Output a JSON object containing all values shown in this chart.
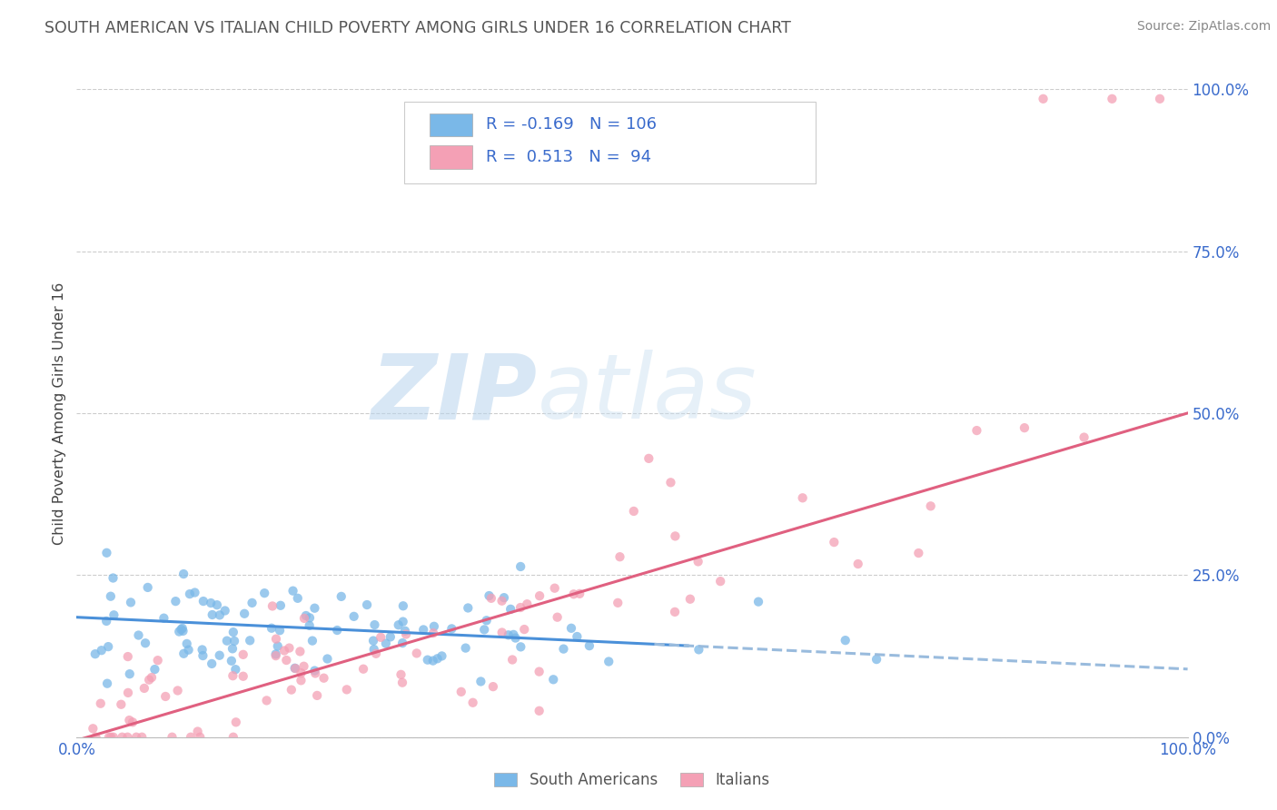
{
  "title": "SOUTH AMERICAN VS ITALIAN CHILD POVERTY AMONG GIRLS UNDER 16 CORRELATION CHART",
  "source": "Source: ZipAtlas.com",
  "watermark_zip": "ZIP",
  "watermark_atlas": "atlas",
  "ylabel": "Child Poverty Among Girls Under 16",
  "legend_label1": "South Americans",
  "legend_label2": "Italians",
  "R1": -0.169,
  "N1": 106,
  "R2": 0.513,
  "N2": 94,
  "blue_color": "#7ab8e8",
  "pink_color": "#f4a0b5",
  "blue_line_solid_color": "#4a90d9",
  "blue_line_dash_color": "#99bbdd",
  "pink_line_color": "#e06080",
  "text_color": "#3a6bcc",
  "title_color": "#555555",
  "source_color": "#888888",
  "background_color": "#ffffff",
  "grid_color": "#cccccc",
  "xlim": [
    0.0,
    1.0
  ],
  "ylim": [
    0.0,
    1.0
  ],
  "ytick_positions": [
    0.0,
    0.25,
    0.5,
    0.75,
    1.0
  ],
  "ytick_labels": [
    "0.0%",
    "25.0%",
    "50.0%",
    "75.0%",
    "100.0%"
  ],
  "xtick_positions": [
    0.0,
    1.0
  ],
  "xtick_labels": [
    "0.0%",
    "100.0%"
  ],
  "blue_line_y0": 0.185,
  "blue_line_y1": 0.105,
  "pink_line_y0": -0.005,
  "pink_line_y1": 0.5
}
